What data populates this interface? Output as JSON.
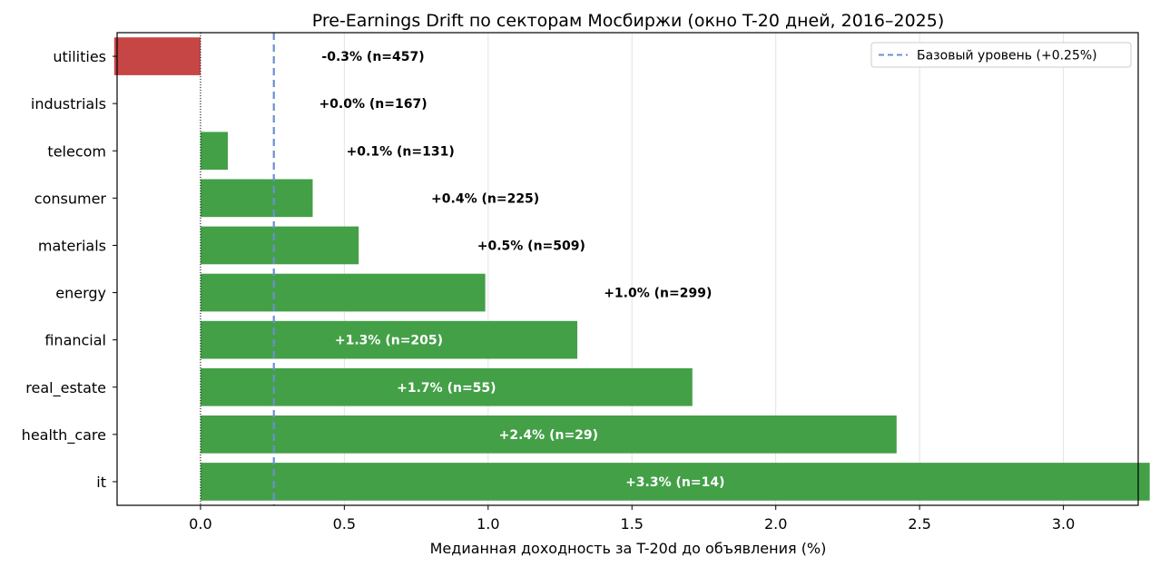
{
  "chart_data": {
    "type": "bar",
    "orientation": "horizontal",
    "title": "Pre-Earnings Drift по секторам Мосбиржи (окно T-20 дней, 2016–2025)",
    "xlabel": "Медианная доходность за T-20d до объявления (%)",
    "ylabel": "",
    "xlim": [
      -0.29,
      3.26
    ],
    "xticks": [
      0.0,
      0.5,
      1.0,
      1.5,
      2.0,
      2.5,
      3.0
    ],
    "xtick_labels": [
      "0.0",
      "0.5",
      "1.0",
      "1.5",
      "2.0",
      "2.5",
      "3.0"
    ],
    "grid": "vertical",
    "zero_line": true,
    "categories": [
      "utilities",
      "industrials",
      "telecom",
      "consumer",
      "materials",
      "energy",
      "financial",
      "real_estate",
      "health_care",
      "it"
    ],
    "values": [
      -0.3,
      0.0,
      0.095,
      0.39,
      0.55,
      0.99,
      1.31,
      1.71,
      2.42,
      3.3
    ],
    "counts": [
      457,
      167,
      131,
      225,
      509,
      299,
      205,
      55,
      29,
      14
    ],
    "value_labels": [
      "-0.3%  (n=457)",
      "+0.0%  (n=167)",
      "+0.1%  (n=131)",
      "+0.4%  (n=225)",
      "+0.5%  (n=509)",
      "+1.0%  (n=299)",
      "+1.3%  (n=205)",
      "+1.7%  (n=55)",
      "+2.4%  (n=29)",
      "+3.3%  (n=14)"
    ],
    "baseline": {
      "value": 0.255,
      "label": "Базовый уровень (+0.25%)",
      "color": "#6a8fd0",
      "style": "dashed"
    },
    "legend": {
      "position": "top-right",
      "entries": [
        "Базовый уровень (+0.25%)"
      ]
    },
    "colors": {
      "positive": "#43a047",
      "negative": "#c64545"
    }
  }
}
